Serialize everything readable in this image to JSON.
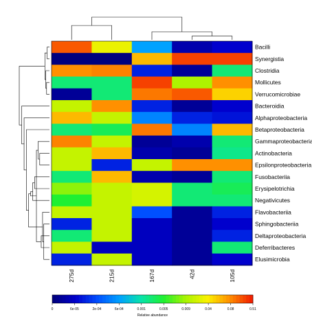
{
  "chart_data": {
    "type": "heatmap",
    "columns": [
      "275d",
      "215d",
      "167d",
      "42d",
      "105d"
    ],
    "rows": [
      "Bacilli",
      "Synergistia",
      "Clostridia",
      "Mollicutes",
      "Verrucomicrobiae",
      "Bacteroidia",
      "Alphaproteobacteria",
      "Betaproteobacteria",
      "Gammaproteobacteria",
      "Actinobacteria",
      "Epsilonproteobacteria",
      "Fusobacteriia",
      "Erysipelotrichia",
      "Negativicutes",
      "Flavobacteriia",
      "Sphingobacteriia",
      "Deltaproteobacteria",
      "Deferribacteres",
      "Elusimicrobia"
    ],
    "values": [
      [
        0.2,
        0.03,
        0.0006,
        4e-05,
        6e-05
      ],
      [
        1e-05,
        2e-05,
        0.06,
        0.3,
        0.3
      ],
      [
        0.08,
        0.1,
        0.0001,
        3e-05,
        0.002
      ],
      [
        0.002,
        0.002,
        0.3,
        0.01,
        0.08
      ],
      [
        3e-05,
        0.002,
        0.12,
        0.2,
        0.05
      ],
      [
        0.015,
        0.08,
        0.0001,
        3e-05,
        6e-05
      ],
      [
        0.06,
        0.015,
        0.0004,
        0.0001,
        8e-05
      ],
      [
        0.002,
        0.003,
        0.12,
        0.0004,
        0.06
      ],
      [
        0.1,
        0.015,
        3e-05,
        4e-05,
        0.002
      ],
      [
        0.015,
        0.06,
        4e-05,
        3e-05,
        0.0015
      ],
      [
        0.015,
        0.0001,
        0.015,
        0.08,
        0.08
      ],
      [
        0.002,
        0.06,
        4e-05,
        3e-05,
        0.002
      ],
      [
        0.008,
        0.015,
        0.02,
        0.002,
        0.003
      ],
      [
        0.005,
        0.015,
        0.02,
        0.002,
        0.002
      ],
      [
        0.015,
        0.015,
        0.0002,
        3e-05,
        0.0001
      ],
      [
        0.0001,
        0.015,
        5e-05,
        3e-05,
        6e-05
      ],
      [
        0.002,
        0.015,
        5e-05,
        3e-05,
        0.0001
      ],
      [
        0.015,
        5e-05,
        5e-05,
        3e-05,
        0.002
      ],
      [
        0.0001,
        0.015,
        5e-05,
        3e-05,
        6e-05
      ]
    ],
    "colorbar": {
      "title": "Relative abundance",
      "tick_labels": [
        "0",
        "6e-05",
        "2e-04",
        "6e-04",
        "0.001",
        "0.005",
        "0.009",
        "0.04",
        "0.08",
        "0.51"
      ]
    },
    "row_dendrogram": [
      [
        0,
        1
      ],
      [
        3,
        4
      ],
      [
        2,
        20
      ],
      [
        19,
        21
      ],
      [
        15,
        18
      ],
      [
        14,
        23
      ],
      [
        16,
        17
      ],
      [
        9,
        10
      ],
      [
        8,
        26
      ],
      [
        25,
        27
      ],
      [
        11,
        12
      ],
      [
        13,
        29
      ],
      [
        28,
        30
      ],
      [
        24,
        31
      ],
      [
        7,
        32
      ],
      [
        6,
        33
      ],
      [
        5,
        34
      ],
      [
        22,
        35
      ]
    ],
    "col_dendrogram": [
      [
        3,
        4
      ],
      [
        2,
        5
      ],
      [
        0,
        1
      ],
      [
        6,
        7
      ]
    ]
  }
}
